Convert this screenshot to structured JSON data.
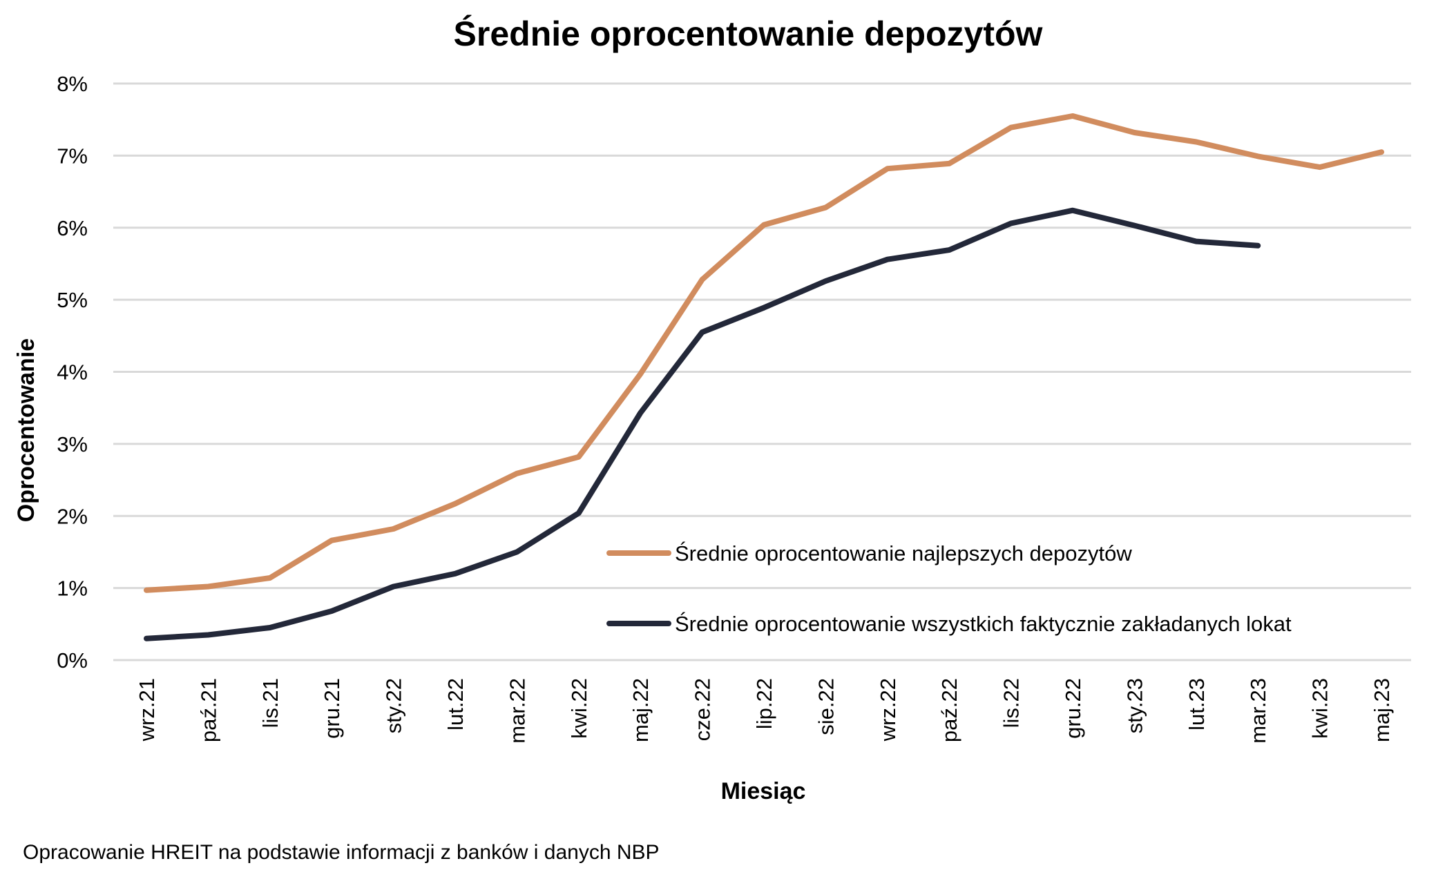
{
  "chart_data": {
    "type": "line",
    "title": "Średnie oprocentowanie depozytów",
    "xlabel": "Miesiąc",
    "ylabel": "Oprocentowanie",
    "ylim": [
      0,
      8
    ],
    "yticks": [
      "0%",
      "1%",
      "2%",
      "3%",
      "4%",
      "5%",
      "6%",
      "7%",
      "8%"
    ],
    "grid": true,
    "legend_position": "lower-right",
    "categories": [
      "wrz.21",
      "paź.21",
      "lis.21",
      "gru.21",
      "sty.22",
      "lut.22",
      "mar.22",
      "kwi.22",
      "maj.22",
      "cze.22",
      "lip.22",
      "sie.22",
      "wrz.22",
      "paź.22",
      "lis.22",
      "gru.22",
      "sty.23",
      "lut.23",
      "mar.23",
      "kwi.23",
      "maj.23"
    ],
    "series": [
      {
        "name": "Średnie oprocentowanie najlepszych depozytów",
        "color": "#d18c5e",
        "values": [
          0.97,
          1.02,
          1.14,
          1.66,
          1.82,
          2.17,
          2.59,
          2.82,
          3.97,
          5.28,
          6.04,
          6.28,
          6.82,
          6.89,
          7.39,
          7.55,
          7.32,
          7.19,
          6.99,
          6.84,
          7.05
        ]
      },
      {
        "name": "Średnie oprocentowanie wszystkich faktycznie zakładanych lokat",
        "color": "#232839",
        "values": [
          0.3,
          0.35,
          0.45,
          0.68,
          1.02,
          1.2,
          1.5,
          2.04,
          3.43,
          4.55,
          4.89,
          5.26,
          5.56,
          5.69,
          6.06,
          6.24,
          6.03,
          5.81,
          5.75,
          null,
          null
        ]
      }
    ],
    "source_note": "Opracowanie HREIT na podstawie informacji z banków i danych NBP"
  }
}
